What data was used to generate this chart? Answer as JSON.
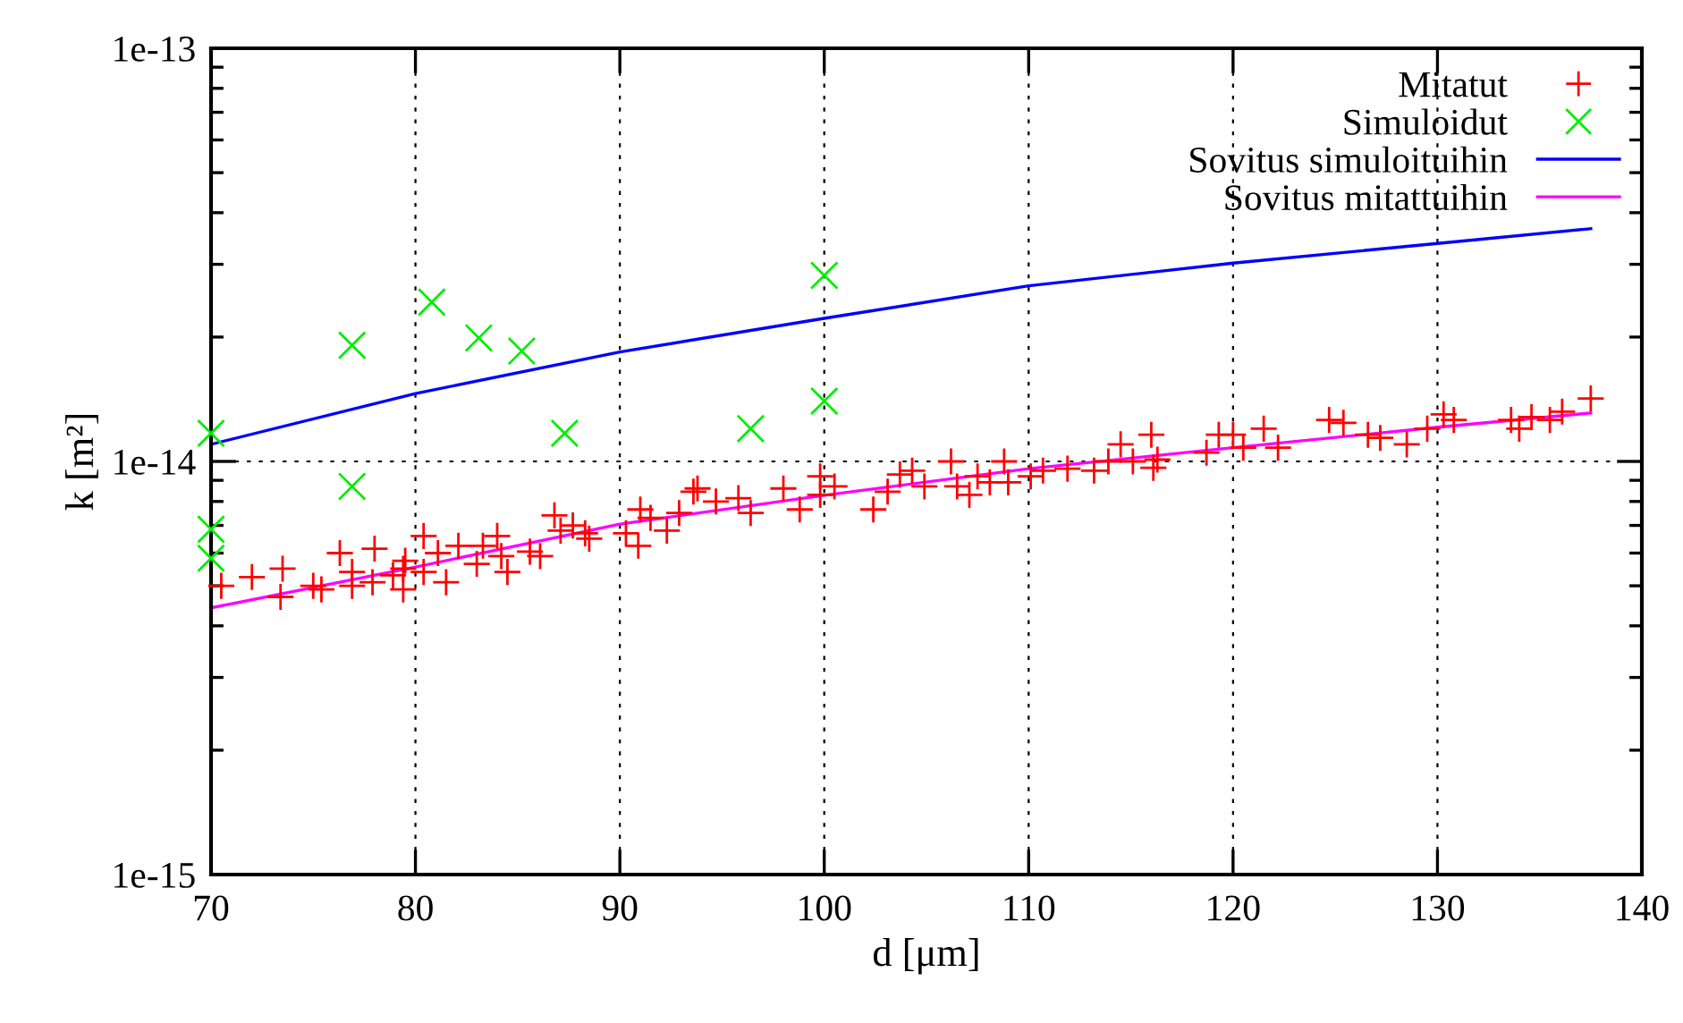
{
  "chart_data": {
    "type": "scatter",
    "xlabel": "d [μm]",
    "ylabel": "k [m²]",
    "log": "y",
    "xlim": [
      70,
      140
    ],
    "xticks": [
      70,
      80,
      90,
      100,
      110,
      120,
      130,
      140
    ],
    "ylim": [
      1e-15,
      1e-13
    ],
    "yticks": [
      {
        "value": 1e-15,
        "label": "1e-15"
      },
      {
        "value": 1e-14,
        "label": "1e-14"
      },
      {
        "value": 1e-13,
        "label": "1e-13"
      }
    ],
    "grid": true,
    "legend": "top right",
    "series": [
      {
        "name": "Mitatut",
        "marker": "cross",
        "color": "#ff0000",
        "x": [
          70.5,
          72.0,
          73.5,
          73.4,
          75.0,
          75.4,
          76.3,
          76.9,
          76.9,
          77.9,
          78.0,
          78.9,
          79.4,
          79.4,
          79.5,
          80.4,
          80.4,
          81.1,
          81.5,
          82.1,
          83.0,
          83.3,
          84.0,
          84.2,
          84.5,
          85.6,
          86.1,
          86.8,
          87.1,
          87.7,
          88.3,
          88.5,
          90.3,
          90.9,
          91.0,
          91.5,
          92.3,
          92.9,
          93.6,
          93.8,
          94.7,
          95.8,
          96.4,
          98.0,
          98.8,
          99.8,
          99.8,
          100.5,
          102.4,
          103.1,
          103.7,
          104.3,
          104.9,
          106.2,
          106.5,
          107.1,
          107.5,
          108.1,
          108.8,
          109.0,
          110.1,
          110.7,
          111.9,
          113.2,
          113.9,
          114.5,
          115.1,
          116.0,
          116.3,
          116.1,
          118.7,
          119.3,
          120.0,
          120.5,
          121.5,
          122.2,
          124.7,
          125.4,
          126.6,
          127.2,
          128.5,
          129.5,
          130.3,
          130.8,
          133.6,
          134.0,
          134.6,
          135.5,
          136.1,
          137.5
        ],
        "values": [
          5e-15,
          5.25e-15,
          5.5e-15,
          4.7e-15,
          5e-15,
          4.9e-15,
          6e-15,
          5.4e-15,
          5e-15,
          5.1e-15,
          6.15e-15,
          5.3e-15,
          5.5e-15,
          4.9e-15,
          5.75e-15,
          6.6e-15,
          5.4e-15,
          6e-15,
          5.1e-15,
          6.25e-15,
          5.65e-15,
          6.25e-15,
          6.6e-15,
          5.9e-15,
          5.4e-15,
          6.05e-15,
          5.9e-15,
          7.4e-15,
          6.8e-15,
          7e-15,
          6.7e-15,
          6.5e-15,
          6.7e-15,
          6.25e-15,
          7.65e-15,
          7.3e-15,
          6.8e-15,
          7.5e-15,
          8.45e-15,
          8.6e-15,
          8e-15,
          8.15e-15,
          7.5e-15,
          8.6e-15,
          7.65e-15,
          9.2e-15,
          8.3e-15,
          8.7e-15,
          7.65e-15,
          8.45e-15,
          9.3e-15,
          9.5e-15,
          8.7e-15,
          1e-14,
          8.7e-15,
          8.3e-15,
          9.2e-15,
          8.9e-15,
          1e-14,
          8.9e-15,
          9.2e-15,
          9.5e-15,
          9.6e-15,
          9.5e-15,
          1e-14,
          1.1e-14,
          1e-14,
          1.16e-14,
          1.01e-14,
          9.65e-15,
          1.05e-14,
          1.16e-14,
          1.16e-14,
          1.08e-14,
          1.2e-14,
          1.08e-14,
          1.26e-14,
          1.24e-14,
          1.16e-14,
          1.14e-14,
          1.1e-14,
          1.2e-14,
          1.3e-14,
          1.26e-14,
          1.26e-14,
          1.2e-14,
          1.28e-14,
          1.26e-14,
          1.32e-14,
          1.42e-14
        ]
      },
      {
        "name": "Simuloidut",
        "marker": "x",
        "color": "#00ee00",
        "x": [
          70,
          70,
          70,
          76.9,
          76.9,
          80.8,
          83.1,
          85.2,
          87.3,
          96.4,
          100,
          100
        ],
        "values": [
          1.17e-14,
          6.85e-15,
          5.83e-15,
          1.91e-14,
          8.7e-15,
          2.43e-14,
          1.99e-14,
          1.85e-14,
          1.17e-14,
          1.2e-14,
          2.82e-14,
          1.4e-14
        ]
      },
      {
        "name": "Sovitus simuloituihin",
        "type": "line",
        "marker": "none",
        "color": "#0000ff",
        "x": [
          70,
          80,
          90,
          100,
          110,
          120,
          130,
          137.5
        ],
        "values": [
          1.1e-14,
          1.46e-14,
          1.84e-14,
          2.22e-14,
          2.66e-14,
          3.02e-14,
          3.37e-14,
          3.66e-14
        ]
      },
      {
        "name": "Sovitus mitattuihin",
        "type": "line",
        "marker": "none",
        "color": "#ff00ff",
        "x": [
          70,
          80,
          90,
          100,
          110,
          120,
          130,
          137.5
        ],
        "values": [
          4.42e-15,
          5.55e-15,
          7.05e-15,
          8.28e-15,
          9.6e-15,
          1.08e-14,
          1.21e-14,
          1.31e-14
        ]
      }
    ]
  }
}
